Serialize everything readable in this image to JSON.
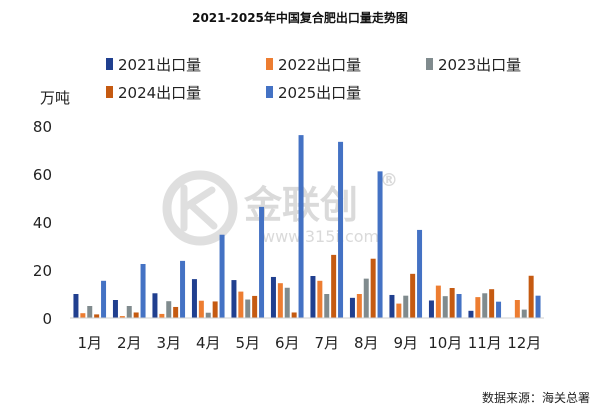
{
  "chart_data": {
    "type": "bar",
    "title": "2021-2025年中国复合肥出口量走势图",
    "ylabel": "万吨",
    "xlabel": "",
    "ylim": [
      0,
      80
    ],
    "yticks": [
      0,
      20,
      40,
      60,
      80
    ],
    "grid": false,
    "legend_position": "top",
    "categories": [
      "1月",
      "2月",
      "3月",
      "4月",
      "5月",
      "6月",
      "7月",
      "8月",
      "9月",
      "10月",
      "11月",
      "12月"
    ],
    "series": [
      {
        "name": "2021出口量",
        "color": "#203f8f",
        "values": [
          10,
          7.5,
          10.3,
          16.2,
          15.8,
          17.1,
          17.5,
          8.4,
          9.6,
          7.3,
          3,
          null
        ]
      },
      {
        "name": "2022出口量",
        "color": "#ed7d31",
        "values": [
          2,
          0.8,
          1.7,
          7.2,
          11,
          14.5,
          15.5,
          10,
          6,
          13.5,
          8.7,
          7.5
        ]
      },
      {
        "name": "2023出口量",
        "color": "#808b8e",
        "values": [
          5,
          5,
          7,
          2.2,
          7.7,
          12.6,
          10,
          16.4,
          9.3,
          9.1,
          10.3,
          3.5
        ]
      },
      {
        "name": "2024出口量",
        "color": "#c55a11",
        "values": [
          1.5,
          2.3,
          4.6,
          6.9,
          9.2,
          2.3,
          26.3,
          24.7,
          18.4,
          12.5,
          12,
          17.6
        ]
      },
      {
        "name": "2025出口量",
        "color": "#4472c4",
        "values": [
          15.5,
          22.5,
          23.8,
          34.7,
          46.3,
          76.2,
          73.4,
          61.1,
          36.7,
          10,
          6.8,
          9.3
        ]
      }
    ]
  },
  "source": "数据来源：海关总署",
  "watermark": {
    "brand": "金联创",
    "registered": "®",
    "url": "www.315i.com"
  }
}
